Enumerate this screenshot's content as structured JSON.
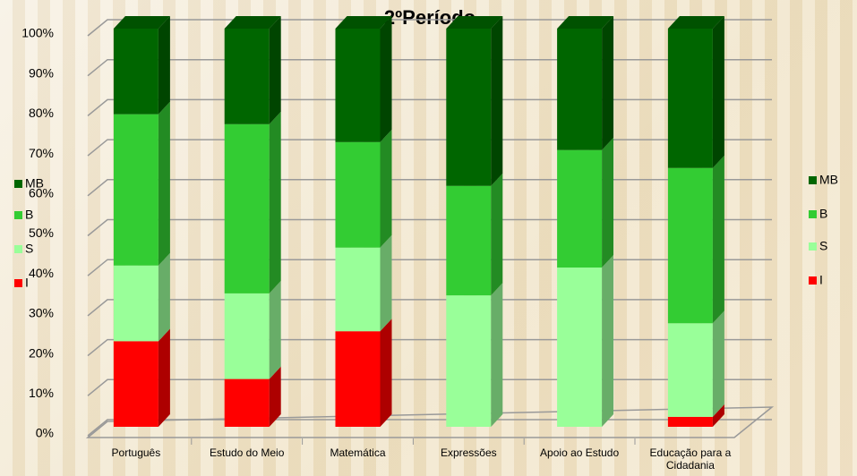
{
  "chart_data": {
    "type": "bar3d_stacked",
    "title": "2ºPeríodo",
    "categories": [
      "Português",
      "Estudo do Meio",
      "Matemática",
      "Expressões",
      "Apoio ao Estudo",
      "Educação para a Cidadania"
    ],
    "series": [
      {
        "name": "I",
        "color": "#ff0000",
        "values": [
          21.5,
          12,
          24,
          0,
          0,
          2.5
        ]
      },
      {
        "name": "S",
        "color": "#99ff99",
        "values": [
          19,
          21.5,
          21,
          33,
          40,
          23.5
        ]
      },
      {
        "name": "B",
        "color": "#33cc33",
        "values": [
          38,
          42.5,
          26.5,
          27.5,
          29.5,
          39
        ]
      },
      {
        "name": "MB",
        "color": "#006600",
        "values": [
          21.5,
          24,
          28.5,
          39.5,
          30.5,
          35
        ]
      }
    ],
    "ylim": [
      0,
      100
    ],
    "yticks": [
      {
        "value": 0,
        "label": "0%"
      },
      {
        "value": 10,
        "label": "10%"
      },
      {
        "value": 20,
        "label": "20%"
      },
      {
        "value": 30,
        "label": "30%"
      },
      {
        "value": 40,
        "label": "40%"
      },
      {
        "value": 50,
        "label": "50%"
      },
      {
        "value": 60,
        "label": "60%"
      },
      {
        "value": 70,
        "label": "70%"
      },
      {
        "value": 80,
        "label": "80%"
      },
      {
        "value": 90,
        "label": "90%"
      },
      {
        "value": 100,
        "label": "100%"
      }
    ],
    "grid": true
  }
}
